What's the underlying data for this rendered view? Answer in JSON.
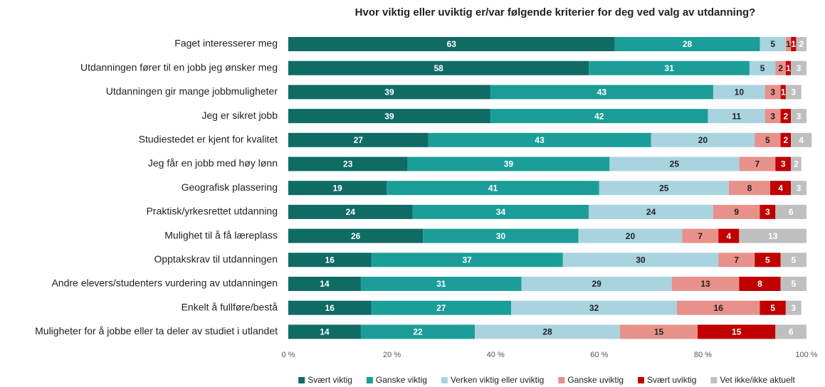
{
  "chart_data": {
    "type": "stacked_barh",
    "title": "Hvor viktig eller uviktig er/var følgende kriterier for deg ved valg av utdanning?",
    "categories": [
      "Faget interesserer meg",
      "Utdanningen fører til en jobb jeg ønsker meg",
      "Utdanningen gir mange jobbmuligheter",
      "Jeg er sikret jobb",
      "Studiestedet er kjent for kvalitet",
      "Jeg får en jobb med høy lønn",
      "Geografisk plassering",
      "Praktisk/yrkesrettet utdanning",
      "Mulighet til å få læreplass",
      "Opptakskrav til utdanningen",
      "Andre elevers/studenters vurdering av utdanningen",
      "Enkelt å fullføre/bestå",
      "Muligheter for å jobbe eller ta deler av studiet i utlandet"
    ],
    "series": [
      {
        "name": "Svært viktig",
        "color": "#0f6b64",
        "values": [
          63,
          58,
          39,
          39,
          27,
          23,
          19,
          24,
          26,
          16,
          14,
          16,
          14
        ]
      },
      {
        "name": "Ganske viktig",
        "color": "#1b9e99",
        "values": [
          28,
          31,
          43,
          42,
          43,
          39,
          41,
          34,
          30,
          37,
          31,
          27,
          22
        ]
      },
      {
        "name": "Verken viktig eller uviktig",
        "color": "#a9d3df",
        "values": [
          5,
          5,
          10,
          11,
          20,
          25,
          25,
          24,
          20,
          30,
          29,
          32,
          28
        ]
      },
      {
        "name": "Ganske uviktig",
        "color": "#e8918b",
        "values": [
          1,
          2,
          3,
          3,
          5,
          7,
          8,
          9,
          7,
          7,
          13,
          16,
          15
        ]
      },
      {
        "name": "Svært uviktig",
        "color": "#c00000",
        "values": [
          1,
          1,
          1,
          2,
          2,
          3,
          4,
          3,
          4,
          5,
          8,
          5,
          15
        ]
      },
      {
        "name": "Vet ikke/ikke aktuelt",
        "color": "#bfbfbf",
        "values": [
          2,
          3,
          3,
          3,
          4,
          2,
          3,
          6,
          13,
          5,
          5,
          3,
          6
        ]
      }
    ],
    "xlim": [
      0,
      100
    ],
    "xticks": [
      {
        "value": 0,
        "label": "0 %"
      },
      {
        "value": 20,
        "label": "20 %"
      },
      {
        "value": 40,
        "label": "40 %"
      },
      {
        "value": 60,
        "label": "60 %"
      },
      {
        "value": 80,
        "label": "80 %"
      },
      {
        "value": 100,
        "label": "100 %"
      }
    ],
    "legend": "bottom"
  }
}
